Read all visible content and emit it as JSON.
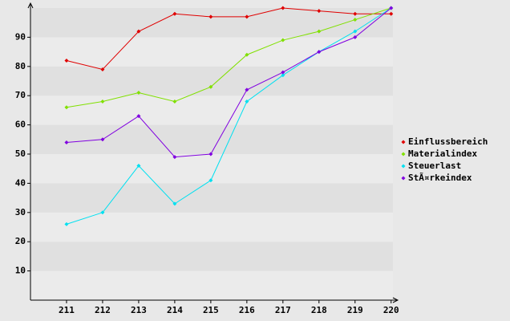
{
  "chart_data": {
    "type": "line",
    "categories": [
      "211",
      "212",
      "213",
      "214",
      "215",
      "216",
      "217",
      "218",
      "219",
      "220"
    ],
    "series": [
      {
        "name": "Einflussbereich",
        "color": "#e00000",
        "values": [
          82,
          79,
          92,
          98,
          97,
          97,
          100,
          99,
          98,
          98
        ]
      },
      {
        "name": "Materialindex",
        "color": "#80e000",
        "values": [
          66,
          68,
          71,
          68,
          73,
          84,
          89,
          92,
          96,
          100
        ]
      },
      {
        "name": "Steuerlast",
        "color": "#00e0f0",
        "values": [
          26,
          30,
          46,
          33,
          41,
          68,
          77,
          85,
          92,
          100
        ]
      },
      {
        "name": "StÃ¤rkeindex",
        "color": "#8000e0",
        "values": [
          54,
          55,
          63,
          49,
          50,
          72,
          78,
          85,
          90,
          100
        ]
      }
    ],
    "ylim": [
      0,
      100
    ],
    "yticks": [
      10,
      20,
      30,
      40,
      50,
      60,
      70,
      80,
      90
    ],
    "grid": true,
    "legend": "right"
  }
}
